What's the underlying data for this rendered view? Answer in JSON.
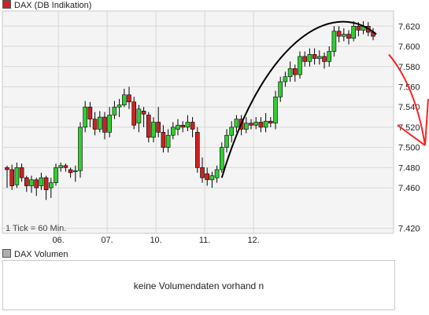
{
  "legend": {
    "price_label": "DAX (DB Indikation)",
    "volume_label": "DAX Volumen"
  },
  "colors": {
    "up": "#33cc33",
    "down": "#cc2222",
    "grid": "#d8d8d8",
    "plot_bg": "#f4f4f4",
    "legend_price": "#cc2222",
    "legend_volume": "#b0b0b0",
    "annotation": "#000000",
    "arrow": "#ff2222"
  },
  "volume_panel": {
    "message": "keine Volumendaten vorhand  n"
  },
  "chart_data": {
    "type": "candlestick",
    "title": "DAX (DB Indikation)",
    "tick_note": "1 Tick = 60 Min.",
    "y_ticks": [
      "7.420",
      "7.460",
      "7.480",
      "7.500",
      "7.520",
      "7.540",
      "7.560",
      "7.580",
      "7.600",
      "7.620"
    ],
    "ylim": [
      7415,
      7635
    ],
    "y_axis_side": "right",
    "x_ticks": [
      {
        "label": "06.",
        "index": 10.5
      },
      {
        "label": "07.",
        "index": 20.5
      },
      {
        "label": "10.",
        "index": 30.5
      },
      {
        "label": "11.",
        "index": 40.5
      },
      {
        "label": "12.",
        "index": 50.5
      }
    ],
    "grid": true,
    "candles": [
      [
        7480,
        7478,
        7482,
        7460
      ],
      [
        7478,
        7462,
        7483,
        7458
      ],
      [
        7463,
        7480,
        7485,
        7460
      ],
      [
        7480,
        7470,
        7484,
        7466
      ],
      [
        7470,
        7462,
        7472,
        7456
      ],
      [
        7462,
        7468,
        7472,
        7455
      ],
      [
        7468,
        7460,
        7470,
        7452
      ],
      [
        7462,
        7470,
        7475,
        7458
      ],
      [
        7470,
        7458,
        7472,
        7448
      ],
      [
        7460,
        7465,
        7470,
        7450
      ],
      [
        7465,
        7480,
        7484,
        7462
      ],
      [
        7480,
        7482,
        7485,
        7476
      ],
      [
        7482,
        7480,
        7484,
        7476
      ],
      [
        7478,
        7475,
        7480,
        7470
      ],
      [
        7476,
        7477,
        7482,
        7466
      ],
      [
        7477,
        7520,
        7525,
        7470
      ],
      [
        7520,
        7540,
        7546,
        7515
      ],
      [
        7540,
        7528,
        7545,
        7520
      ],
      [
        7528,
        7518,
        7535,
        7512
      ],
      [
        7518,
        7530,
        7536,
        7515
      ],
      [
        7530,
        7515,
        7535,
        7508
      ],
      [
        7515,
        7532,
        7540,
        7510
      ],
      [
        7532,
        7540,
        7546,
        7528
      ],
      [
        7540,
        7542,
        7548,
        7530
      ],
      [
        7542,
        7552,
        7558,
        7540
      ],
      [
        7552,
        7545,
        7560,
        7538
      ],
      [
        7545,
        7522,
        7550,
        7518
      ],
      [
        7524,
        7538,
        7542,
        7515
      ],
      [
        7536,
        7533,
        7540,
        7520
      ],
      [
        7532,
        7510,
        7535,
        7505
      ],
      [
        7510,
        7525,
        7530,
        7505
      ],
      [
        7525,
        7515,
        7540,
        7510
      ],
      [
        7515,
        7500,
        7522,
        7495
      ],
      [
        7500,
        7512,
        7518,
        7495
      ],
      [
        7512,
        7520,
        7525,
        7508
      ],
      [
        7518,
        7522,
        7528,
        7512
      ],
      [
        7522,
        7520,
        7526,
        7515
      ],
      [
        7520,
        7525,
        7532,
        7516
      ],
      [
        7525,
        7518,
        7530,
        7510
      ],
      [
        7515,
        7480,
        7520,
        7475
      ],
      [
        7480,
        7470,
        7490,
        7465
      ],
      [
        7474,
        7468,
        7480,
        7462
      ],
      [
        7468,
        7472,
        7476,
        7460
      ],
      [
        7470,
        7478,
        7482,
        7465
      ],
      [
        7478,
        7500,
        7505,
        7475
      ],
      [
        7500,
        7512,
        7518,
        7495
      ],
      [
        7512,
        7520,
        7526,
        7505
      ],
      [
        7520,
        7528,
        7532,
        7515
      ],
      [
        7528,
        7518,
        7532,
        7512
      ],
      [
        7518,
        7524,
        7530,
        7514
      ],
      [
        7524,
        7522,
        7528,
        7518
      ],
      [
        7522,
        7525,
        7530,
        7518
      ],
      [
        7525,
        7520,
        7530,
        7515
      ],
      [
        7520,
        7526,
        7534,
        7515
      ],
      [
        7526,
        7524,
        7530,
        7520
      ],
      [
        7524,
        7550,
        7556,
        7518
      ],
      [
        7550,
        7565,
        7570,
        7545
      ],
      [
        7565,
        7570,
        7575,
        7560
      ],
      [
        7570,
        7578,
        7585,
        7565
      ],
      [
        7578,
        7572,
        7582,
        7565
      ],
      [
        7572,
        7590,
        7595,
        7568
      ],
      [
        7590,
        7585,
        7595,
        7580
      ],
      [
        7585,
        7592,
        7598,
        7580
      ],
      [
        7592,
        7588,
        7598,
        7582
      ],
      [
        7588,
        7590,
        7596,
        7582
      ],
      [
        7590,
        7585,
        7594,
        7578
      ],
      [
        7585,
        7595,
        7600,
        7580
      ],
      [
        7595,
        7615,
        7620,
        7590
      ],
      [
        7615,
        7610,
        7620,
        7604
      ],
      [
        7610,
        7612,
        7618,
        7605
      ],
      [
        7612,
        7608,
        7616,
        7602
      ],
      [
        7608,
        7620,
        7625,
        7605
      ],
      [
        7620,
        7616,
        7624,
        7610
      ],
      [
        7616,
        7620,
        7625,
        7612
      ],
      [
        7620,
        7614,
        7624,
        7610
      ],
      [
        7614,
        7610,
        7618,
        7606
      ]
    ],
    "annotations": [
      {
        "type": "hand-drawn-arc"
      },
      {
        "type": "hand-drawn-arrow"
      }
    ]
  }
}
